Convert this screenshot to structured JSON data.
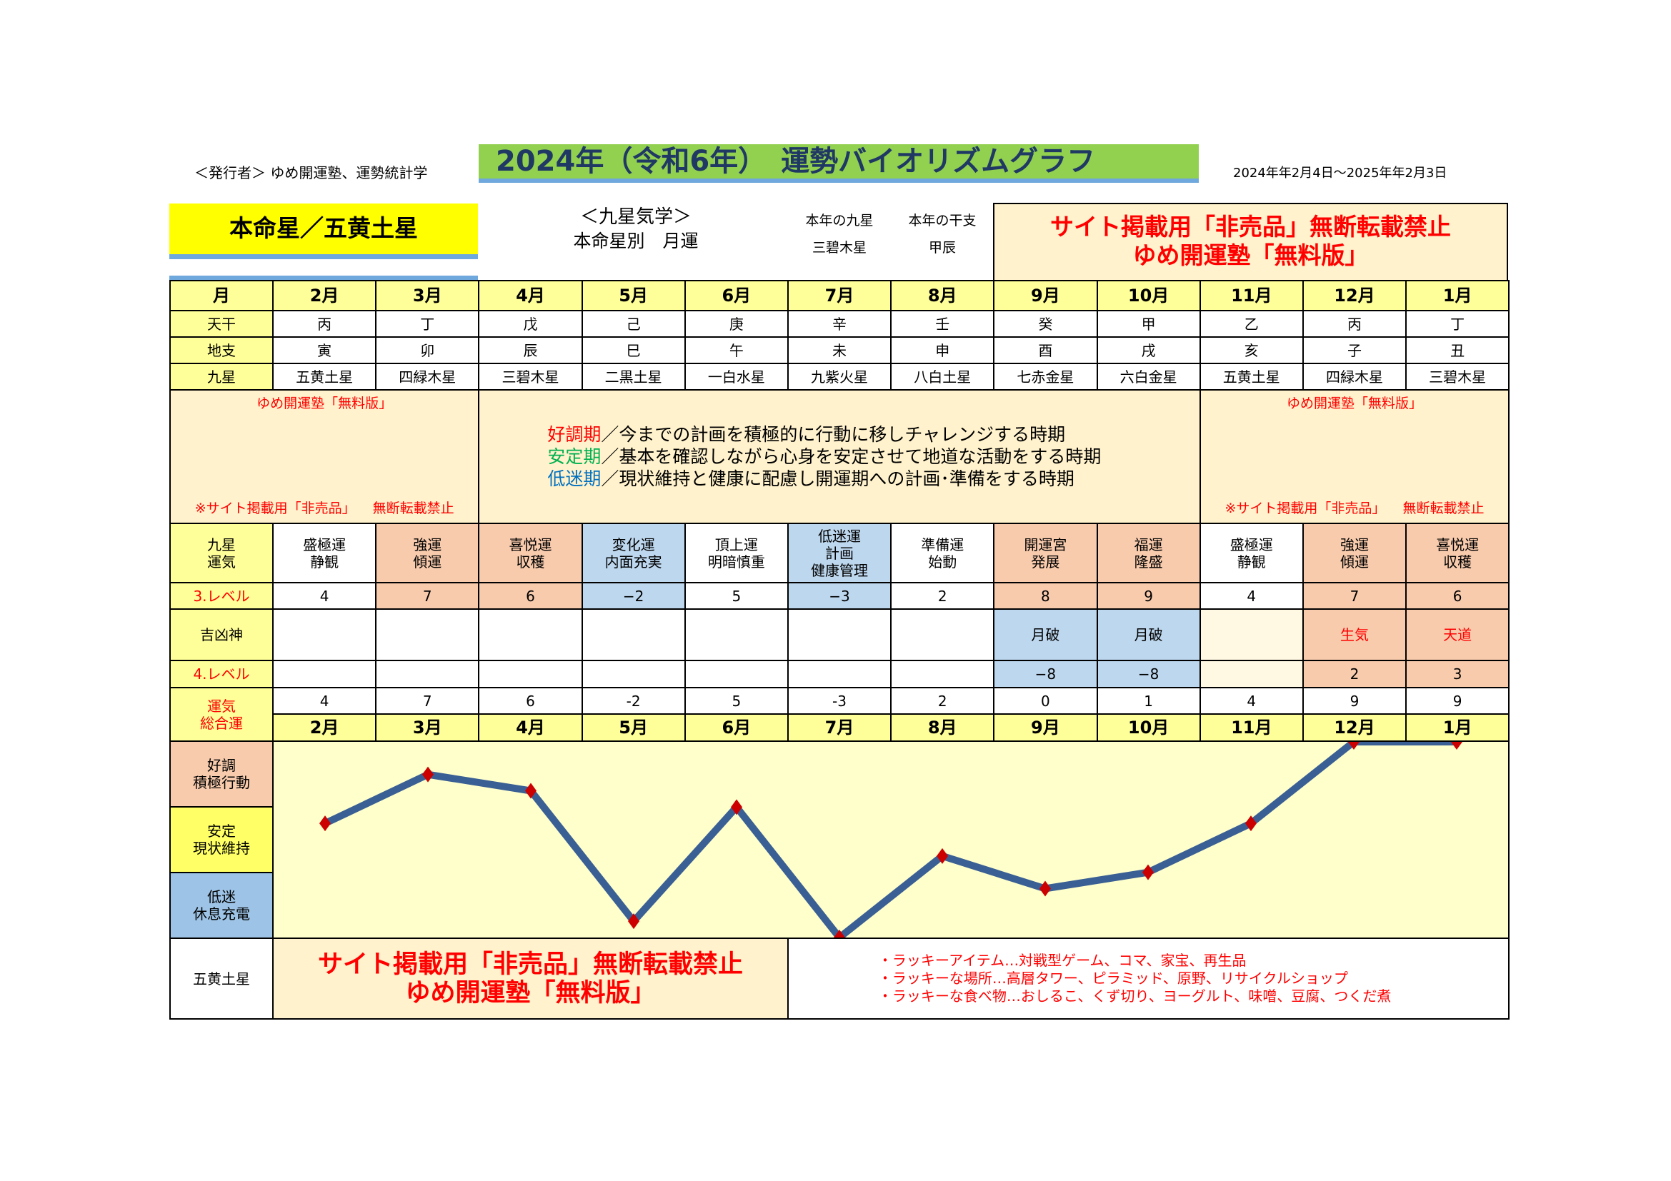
{
  "header": {
    "publisher": "＜発行者＞ ゆめ開運塾、運勢統計学",
    "title": "2024年（令和6年）　運勢バイオリズムグラフ",
    "period": "2024年年2月4日～2025年年2月3日"
  },
  "honmei": "本命星／五黄土星",
  "kyusei": {
    "title": "＜九星気学＞",
    "subtitle": "本命星別　月運"
  },
  "year_star": {
    "label": "本年の九星",
    "value": "三碧木星"
  },
  "year_eto": {
    "label": "本年の干支",
    "value": "甲辰"
  },
  "warning": {
    "line1": "サイト掲載用「非売品」無断転載禁止",
    "line2": "ゆめ開運塾「無料版」"
  },
  "labels": {
    "month": "月",
    "tenkan": "天干",
    "chishi": "地支",
    "kyusei": "九星",
    "unki": "九星\n運気",
    "level3": "3.レベル",
    "kikkyo": "吉凶神",
    "level4": "4.レベル",
    "sogo": "運気\n総合運",
    "band_good": "好調\n積極行動",
    "band_stable": "安定\n現状維持",
    "band_low": "低迷\n休息充電",
    "footer_star": "五黄土星"
  },
  "legend": {
    "side_top": "ゆめ開運塾「無料版」",
    "side_bottom": "※サイト掲載用「非売品」 無断転載禁止",
    "lines": [
      {
        "term": "好調期",
        "color": "#ff0000",
        "text": "／今までの計画を積極的に行動に移しチャレンジする時期"
      },
      {
        "term": "安定期",
        "color": "#00b050",
        "text": "／基本を確認しながら心身を安定させて地道な活動をする時期"
      },
      {
        "term": "低迷期",
        "color": "#0070c0",
        "text": "／現状維持と健康に配慮し開運期への計画･準備をする時期"
      }
    ]
  },
  "months": [
    {
      "month": "2月",
      "tenkan": "丙",
      "chishi": "寅",
      "star": "五黄土星",
      "unki": "盛極運\n静観",
      "level3": "4",
      "kikkyo": "",
      "level4": "",
      "sogo": 4,
      "tone": "wh",
      "tone4": "wh"
    },
    {
      "month": "3月",
      "tenkan": "丁",
      "chishi": "卯",
      "star": "四緑木星",
      "unki": "強運\n傾運",
      "level3": "7",
      "kikkyo": "",
      "level4": "",
      "sogo": 7,
      "tone": "sal",
      "tone4": "wh"
    },
    {
      "month": "4月",
      "tenkan": "戊",
      "chishi": "辰",
      "star": "三碧木星",
      "unki": "喜悦運\n収穫",
      "level3": "6",
      "kikkyo": "",
      "level4": "",
      "sogo": 6,
      "tone": "sal",
      "tone4": "wh"
    },
    {
      "month": "5月",
      "tenkan": "己",
      "chishi": "巳",
      "star": "二黒土星",
      "unki": "変化運\n内面充実",
      "level3": "−2",
      "kikkyo": "",
      "level4": "",
      "sogo": -2,
      "tone": "blu",
      "tone4": "wh"
    },
    {
      "month": "6月",
      "tenkan": "庚",
      "chishi": "午",
      "star": "一白水星",
      "unki": "頂上運\n明暗慎重",
      "level3": "5",
      "kikkyo": "",
      "level4": "",
      "sogo": 5,
      "tone": "wh",
      "tone4": "wh"
    },
    {
      "month": "7月",
      "tenkan": "辛",
      "chishi": "未",
      "star": "九紫火星",
      "unki": "低迷運\n計画\n健康管理",
      "level3": "−3",
      "kikkyo": "",
      "level4": "",
      "sogo": -3,
      "tone": "blu",
      "tone4": "wh"
    },
    {
      "month": "8月",
      "tenkan": "壬",
      "chishi": "申",
      "star": "八白土星",
      "unki": "準備運\n始動",
      "level3": "2",
      "kikkyo": "",
      "level4": "",
      "sogo": 2,
      "tone": "wh",
      "tone4": "wh"
    },
    {
      "month": "9月",
      "tenkan": "癸",
      "chishi": "酉",
      "star": "七赤金星",
      "unki": "開運宮\n発展",
      "level3": "8",
      "kikkyo": "月破",
      "level4": "−8",
      "sogo": 0,
      "tone": "sal",
      "tone4": "blu"
    },
    {
      "month": "10月",
      "tenkan": "甲",
      "chishi": "戌",
      "star": "六白金星",
      "unki": "福運\n隆盛",
      "level3": "9",
      "kikkyo": "月破",
      "level4": "−8",
      "sogo": 1,
      "tone": "sal",
      "tone4": "blu"
    },
    {
      "month": "11月",
      "tenkan": "乙",
      "chishi": "亥",
      "star": "五黄土星",
      "unki": "盛極運\n静観",
      "level3": "4",
      "kikkyo": "",
      "level4": "",
      "sogo": 4,
      "tone": "wh",
      "tone4": "pale"
    },
    {
      "month": "12月",
      "tenkan": "丙",
      "chishi": "子",
      "star": "四緑木星",
      "unki": "強運\n傾運",
      "level3": "7",
      "kikkyo": "生気",
      "level4": "2",
      "sogo": 9,
      "tone": "sal",
      "tone4": "sal",
      "kikkyo_red": true
    },
    {
      "month": "1月",
      "tenkan": "丁",
      "chishi": "丑",
      "star": "三碧木星",
      "unki": "喜悦運\n収穫",
      "level3": "6",
      "kikkyo": "天道",
      "level4": "3",
      "sogo": 9,
      "tone": "sal",
      "tone4": "sal",
      "kikkyo_red": true
    }
  ],
  "colors": {
    "salmon": "#f8cbad",
    "blue": "#bdd7ee",
    "yellow": "#ffff99",
    "chart_bg": "#ffffcc",
    "line": "#3a5f94",
    "marker": "#cc0000",
    "title_bg": "#92d050"
  },
  "chart_data": {
    "type": "line",
    "categories": [
      "2月",
      "3月",
      "4月",
      "5月",
      "6月",
      "7月",
      "8月",
      "9月",
      "10月",
      "11月",
      "12月",
      "1月"
    ],
    "values": [
      4,
      7,
      6,
      -2,
      5,
      -3,
      2,
      0,
      1,
      4,
      9,
      9
    ],
    "ylim": [
      -3,
      9
    ],
    "bands": [
      "好調 積極行動",
      "安定 現状維持",
      "低迷 休息充電"
    ]
  },
  "footer": {
    "warn1": "サイト掲載用「非売品」無断転載禁止",
    "warn2": "ゆめ開運塾「無料版」",
    "lucky": [
      "・ラッキーアイテム…対戦型ゲーム、コマ、家宝、再生品",
      "・ラッキーな場所…高層タワー、ピラミッド、原野、リサイクルショップ",
      "・ラッキーな食べ物…おしるこ、くず切り、ヨーグルト、味噌、豆腐、つくだ煮"
    ]
  }
}
